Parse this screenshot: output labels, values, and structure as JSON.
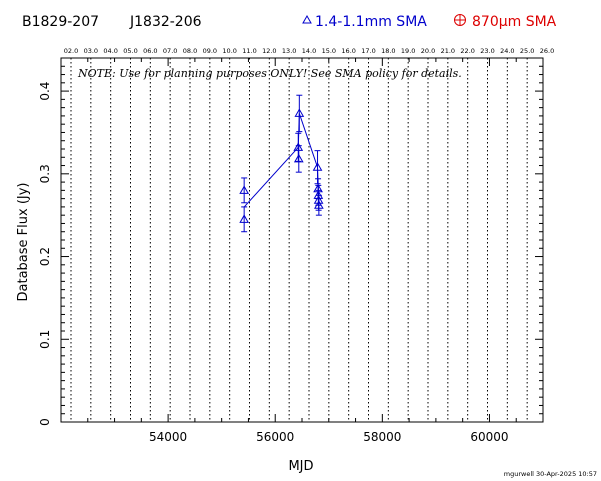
{
  "chart_data": {
    "type": "scatter",
    "source_names": [
      "B1829-207",
      "J1832-206"
    ],
    "legend": [
      {
        "symbol": "triangle",
        "label": "1.4-1.1mm SMA",
        "color": "#0000cc"
      },
      {
        "symbol": "circle-plus",
        "label": "870μm SMA",
        "color": "#dd0000"
      }
    ],
    "xlabel": "MJD",
    "ylabel": "Database Flux (Jy)",
    "xlim": [
      52000,
      61000
    ],
    "ylim": [
      0,
      0.44
    ],
    "x_ticks": [
      {
        "value": 54000,
        "label": "54000"
      },
      {
        "value": 56000,
        "label": "56000"
      },
      {
        "value": 58000,
        "label": "58000"
      },
      {
        "value": 60000,
        "label": "60000"
      }
    ],
    "y_ticks": [
      {
        "value": 0,
        "label": "0"
      },
      {
        "value": 0.1,
        "label": "0.1"
      },
      {
        "value": 0.2,
        "label": "0.2"
      },
      {
        "value": 0.3,
        "label": "0.3"
      },
      {
        "value": 0.4,
        "label": "0.4"
      }
    ],
    "top_axis_labels": [
      "02.0",
      "03.0",
      "04.0",
      "05.0",
      "06.0",
      "07.0",
      "08.0",
      "09.0",
      "10.0",
      "11.0",
      "12.0",
      "13.0",
      "14.0",
      "15.0",
      "16.0",
      "17.0",
      "18.0",
      "19.0",
      "20.0",
      "21.0",
      "22.0",
      "23.0",
      "24.0",
      "25.0",
      "26.0"
    ],
    "note": "NOTE: Use for planning purposes ONLY!  See SMA policy for details.",
    "footer": "mgurwell 30-Apr-2025 10:57",
    "series": [
      {
        "name": "1.4-1.1mm SMA",
        "color": "#0000cc",
        "marker": "triangle",
        "connected": true,
        "points": [
          {
            "x": 55420,
            "y": 0.28,
            "err": 0.015
          },
          {
            "x": 55420,
            "y": 0.245,
            "err": 0.015
          },
          {
            "x": 56430,
            "y": 0.332,
            "err": 0.017
          },
          {
            "x": 56440,
            "y": 0.318,
            "err": 0.016
          },
          {
            "x": 56450,
            "y": 0.373,
            "err": 0.022
          },
          {
            "x": 56790,
            "y": 0.308,
            "err": 0.02
          },
          {
            "x": 56800,
            "y": 0.282,
            "err": 0.012
          },
          {
            "x": 56805,
            "y": 0.274,
            "err": 0.012
          },
          {
            "x": 56810,
            "y": 0.268,
            "err": 0.012
          },
          {
            "x": 56815,
            "y": 0.262,
            "err": 0.012
          }
        ],
        "line_path": [
          {
            "x": 55420,
            "y": 0.26
          },
          {
            "x": 56430,
            "y": 0.332
          },
          {
            "x": 56450,
            "y": 0.373
          },
          {
            "x": 56790,
            "y": 0.308
          },
          {
            "x": 56815,
            "y": 0.262
          }
        ]
      }
    ]
  }
}
